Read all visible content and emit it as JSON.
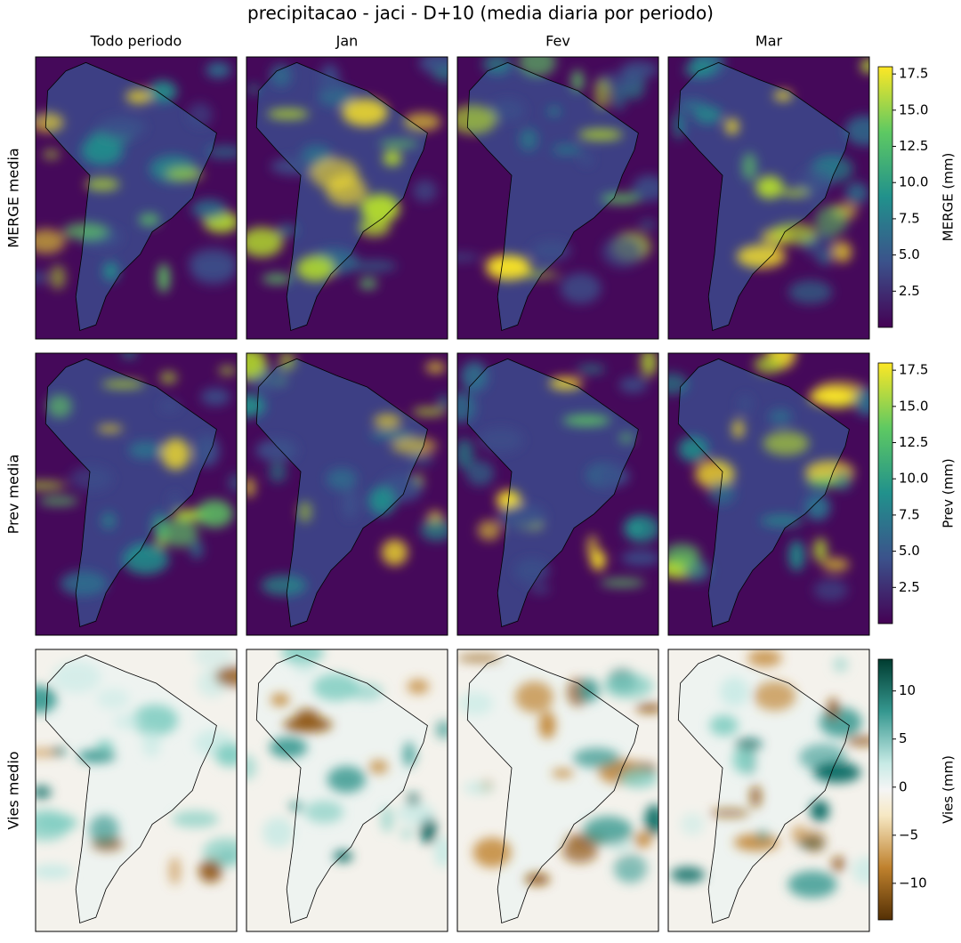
{
  "title": "precipitacao - jaci - D+10 (media diaria por periodo)",
  "columns": [
    "Todo periodo",
    "Jan",
    "Fev",
    "Mar"
  ],
  "rows": [
    {
      "label": "MERGE media",
      "colorbar": {
        "label": "MERGE (mm)",
        "colormap": "viridis",
        "lim": [
          0,
          18
        ],
        "ticks": [
          2.5,
          {
            "value": 5,
            "label": "5.0"
          },
          7.5,
          {
            "value": 10,
            "label": "10.0"
          },
          12.5,
          {
            "value": 15,
            "label": "15.0"
          },
          17.5
        ]
      }
    },
    {
      "label": "Prev media",
      "colorbar": {
        "label": "Prev (mm)",
        "colormap": "viridis",
        "lim": [
          0,
          18
        ],
        "ticks": [
          2.5,
          {
            "value": 5,
            "label": "5.0"
          },
          7.5,
          {
            "value": 10,
            "label": "10.0"
          },
          12.5,
          {
            "value": 15,
            "label": "15.0"
          },
          17.5
        ]
      }
    },
    {
      "label": "Vies medio",
      "colorbar": {
        "label": "Vies (mm)",
        "colormap": "BrBG",
        "lim": [
          -13.8,
          13.3
        ],
        "ticks": [
          {
            "value": -10,
            "label": "−10"
          },
          {
            "value": -5,
            "label": "−5"
          },
          0,
          5,
          10
        ]
      }
    }
  ]
}
